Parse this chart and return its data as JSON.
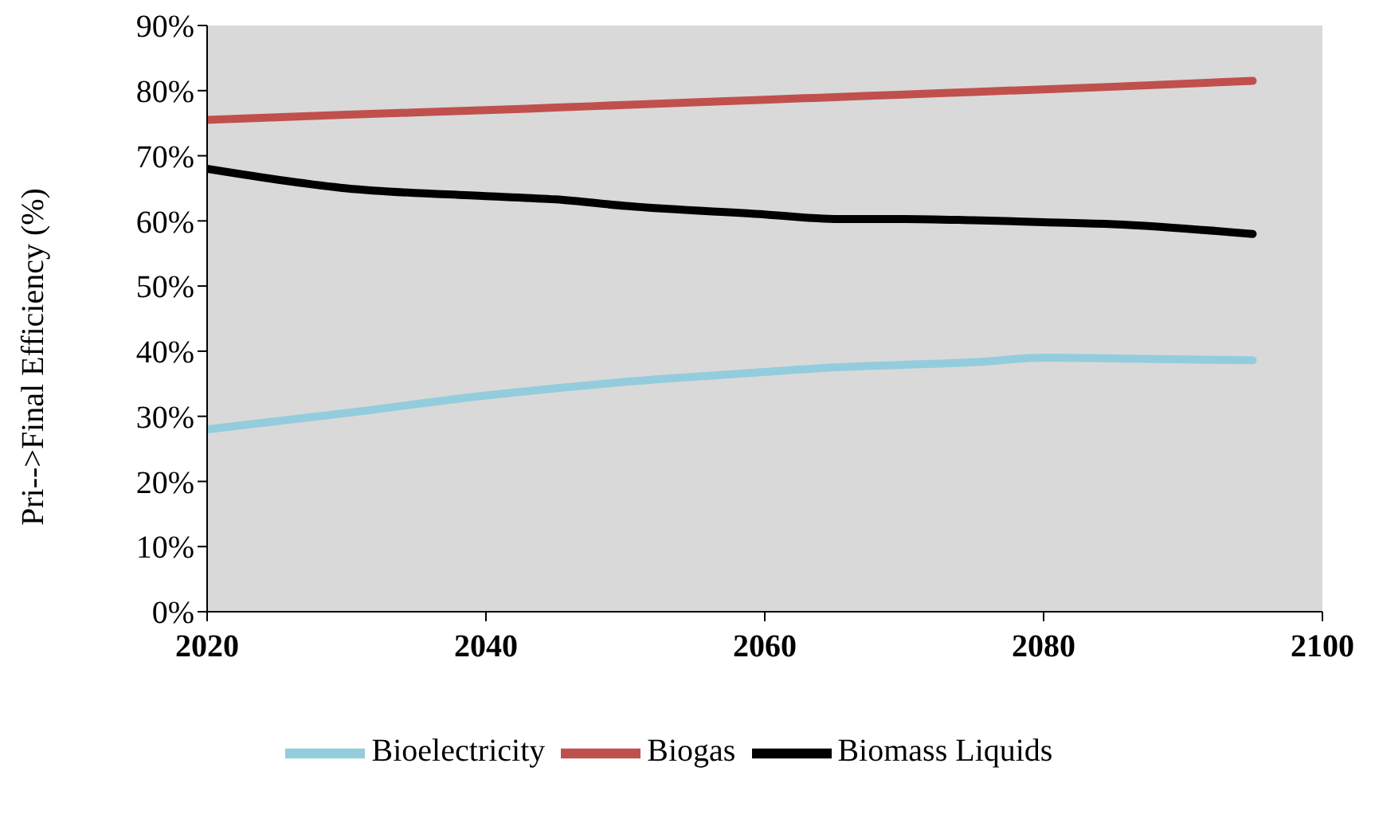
{
  "chart_data": {
    "type": "line",
    "ylabel": "Pri-->Final Efficiency (%)",
    "x": [
      2020,
      2030,
      2040,
      2045,
      2050,
      2060,
      2065,
      2070,
      2075,
      2080,
      2085,
      2095
    ],
    "series": [
      {
        "name": "Biogas",
        "color": "#c0504d",
        "values": [
          75.5,
          76.3,
          77,
          77.4,
          77.8,
          78.6,
          79,
          79.4,
          79.8,
          80.2,
          80.6,
          81.5
        ]
      },
      {
        "name": "Biomass Liquids",
        "color": "#000000",
        "values": [
          68,
          65,
          63.8,
          63.3,
          62.3,
          61,
          60.3,
          60.3,
          60.1,
          59.8,
          59.5,
          58
        ]
      },
      {
        "name": "Bioelectricity",
        "color": "#93cddd",
        "values": [
          28,
          30.5,
          33.2,
          34.3,
          35.3,
          36.8,
          37.5,
          37.9,
          38.3,
          39,
          38.9,
          38.6
        ]
      }
    ],
    "xlim": [
      2020,
      2100
    ],
    "xticks": [
      2020,
      2040,
      2060,
      2080,
      2100
    ],
    "ylim": [
      0,
      90
    ],
    "yticks": [
      {
        "value": 0,
        "label": "0%"
      },
      {
        "value": 10,
        "label": "10%"
      },
      {
        "value": 20,
        "label": "20%"
      },
      {
        "value": 30,
        "label": "30%"
      },
      {
        "value": 40,
        "label": "40%"
      },
      {
        "value": 50,
        "label": "50%"
      },
      {
        "value": 60,
        "label": "60%"
      },
      {
        "value": 70,
        "label": "70%"
      },
      {
        "value": 80,
        "label": "80%"
      },
      {
        "value": 90,
        "label": "90%"
      }
    ],
    "grid": false,
    "legend": "bottom",
    "marker": "none",
    "line_style": "solid"
  }
}
